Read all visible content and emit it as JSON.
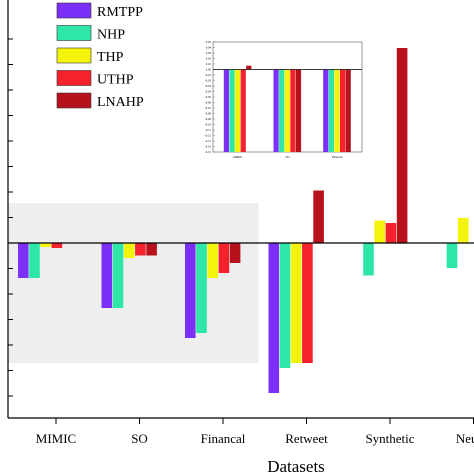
{
  "chart_data": [
    {
      "type": "bar",
      "xlabel": "Datasets",
      "ylabel": "",
      "title": "",
      "categories": [
        "MIMIC",
        "SO",
        "Financal",
        "Retweet",
        "Synthetic",
        "Neural"
      ],
      "ylim": [
        -0.31,
        0.42
      ],
      "series": [
        {
          "name": "RMTPP",
          "color": "#7b2ff7",
          "values": [
            -0.07,
            -0.13,
            -0.19,
            -0.3,
            null,
            null
          ]
        },
        {
          "name": "NHP",
          "color": "#2ee6a6",
          "values": [
            -0.07,
            -0.13,
            -0.18,
            -0.25,
            -0.065,
            -0.05
          ]
        },
        {
          "name": "THP",
          "color": "#f4f40a",
          "values": [
            -0.008,
            -0.03,
            -0.07,
            -0.24,
            0.045,
            0.05
          ]
        },
        {
          "name": "UTHP",
          "color": "#f5222d",
          "values": [
            -0.01,
            -0.025,
            -0.06,
            -0.24,
            0.04,
            null
          ]
        },
        {
          "name": "LNAHP",
          "color": "#b5121b",
          "values": [
            null,
            -0.025,
            -0.04,
            0.105,
            0.39,
            null
          ]
        }
      ],
      "highlight_region": {
        "x_from": "MIMIC",
        "x_to": "Financal",
        "y_range": [
          -0.24,
          0.08
        ],
        "color": "#eeeeee"
      },
      "legend_position": "top-left",
      "grid": false
    },
    {
      "type": "bar",
      "role": "inset",
      "categories": [
        "MIMIC",
        "SO",
        "Financal"
      ],
      "ylim": [
        -0.15,
        0.05
      ],
      "yticks": [
        "0.05",
        "0.04",
        "0.03",
        "0.02",
        "0.01",
        "0.00",
        "-0.01",
        "-0.02",
        "-0.03",
        "-0.04",
        "-0.05",
        "-0.06",
        "-0.07",
        "-0.08",
        "-0.09",
        "-0.10",
        "-0.11",
        "-0.12",
        "-0.13",
        "-0.14",
        "-0.15"
      ],
      "series": [
        {
          "name": "RMTPP",
          "color": "#7b2ff7",
          "values": [
            -0.15,
            -0.15,
            -0.15
          ]
        },
        {
          "name": "NHP",
          "color": "#2ee6a6",
          "values": [
            -0.15,
            -0.15,
            -0.15
          ]
        },
        {
          "name": "THP",
          "color": "#f4f40a",
          "values": [
            -0.15,
            -0.15,
            -0.15
          ]
        },
        {
          "name": "UTHP",
          "color": "#f5222d",
          "values": [
            -0.15,
            -0.15,
            -0.15
          ]
        },
        {
          "name": "LNAHP",
          "color": "#b5121b",
          "values": [
            0.007,
            -0.15,
            -0.15
          ]
        }
      ]
    }
  ]
}
